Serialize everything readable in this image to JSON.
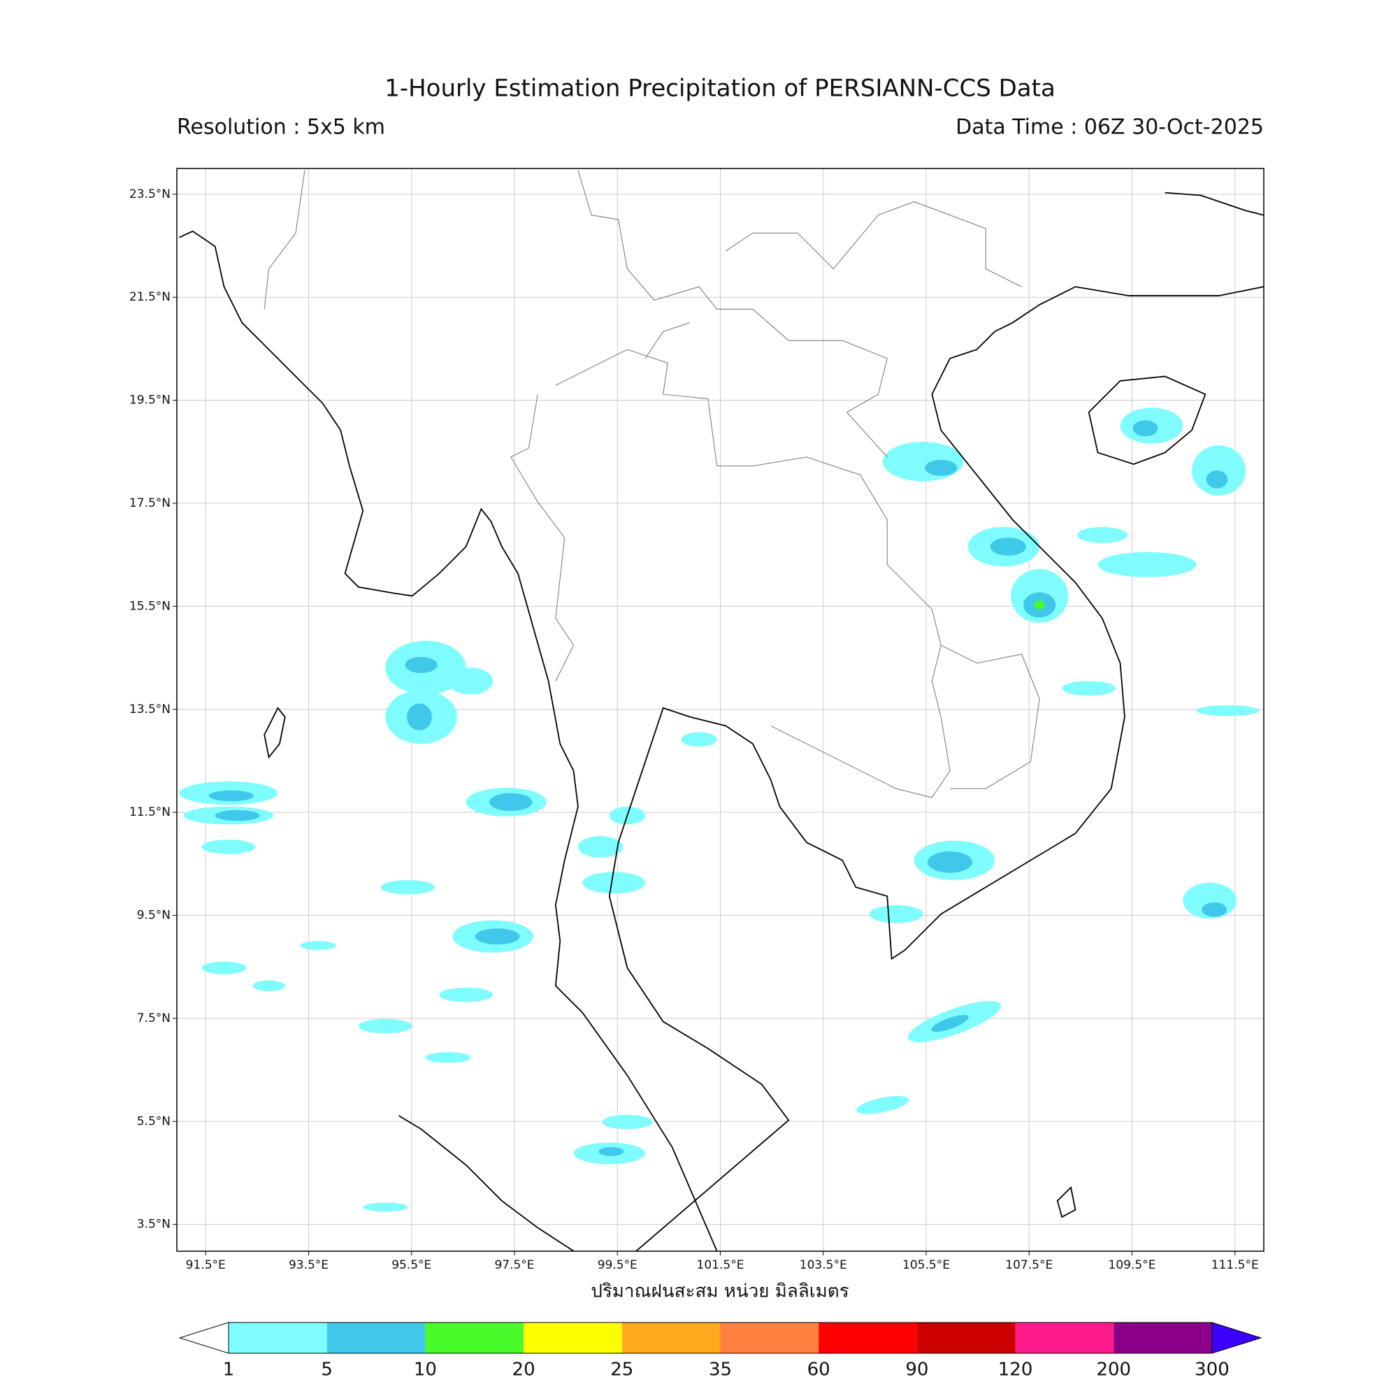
{
  "header": {
    "title": "1-Hourly Estimation Precipitation of PERSIANN-CCS Data",
    "resolution": "Resolution : 5x5 km",
    "data_time": "Data Time : 06Z 30-Oct-2025"
  },
  "map": {
    "xlim": [
      90.94,
      112.06
    ],
    "ylim": [
      2.98,
      24.0
    ],
    "xticks": [
      {
        "value": 91.5,
        "label": "91.5°E"
      },
      {
        "value": 93.5,
        "label": "93.5°E"
      },
      {
        "value": 95.5,
        "label": "95.5°E"
      },
      {
        "value": 97.5,
        "label": "97.5°E"
      },
      {
        "value": 99.5,
        "label": "99.5°E"
      },
      {
        "value": 101.5,
        "label": "101.5°E"
      },
      {
        "value": 103.5,
        "label": "103.5°E"
      },
      {
        "value": 105.5,
        "label": "105.5°E"
      },
      {
        "value": 107.5,
        "label": "107.5°E"
      },
      {
        "value": 109.5,
        "label": "109.5°E"
      },
      {
        "value": 111.5,
        "label": "111.5°E"
      }
    ],
    "yticks": [
      {
        "value": 3.5,
        "label": "3.5°N"
      },
      {
        "value": 5.5,
        "label": "5.5°N"
      },
      {
        "value": 7.5,
        "label": "7.5°N"
      },
      {
        "value": 9.5,
        "label": "9.5°N"
      },
      {
        "value": 11.5,
        "label": "11.5°N"
      },
      {
        "value": 13.5,
        "label": "13.5°N"
      },
      {
        "value": 15.5,
        "label": "15.5°N"
      },
      {
        "value": 17.5,
        "label": "17.5°N"
      },
      {
        "value": 19.5,
        "label": "19.5°N"
      },
      {
        "value": 21.5,
        "label": "21.5°N"
      },
      {
        "value": 23.5,
        "label": "23.5°N"
      }
    ],
    "grid": true
  },
  "colorbar": {
    "label": "ปริมาณฝนสะสม หน่วย มิลลิเมตร",
    "levels": [
      1,
      5,
      10,
      20,
      25,
      35,
      60,
      90,
      120,
      200,
      300
    ],
    "colors": [
      "#7ffcfe",
      "#3fc8ea",
      "#49fb2b",
      "#ffff00",
      "#ffa91e",
      "#ff7f3f",
      "#ff0000",
      "#cc0000",
      "#ff1a8c",
      "#8a0089"
    ],
    "under_color": "#ffffff",
    "over_color": "#3b00ff"
  }
}
